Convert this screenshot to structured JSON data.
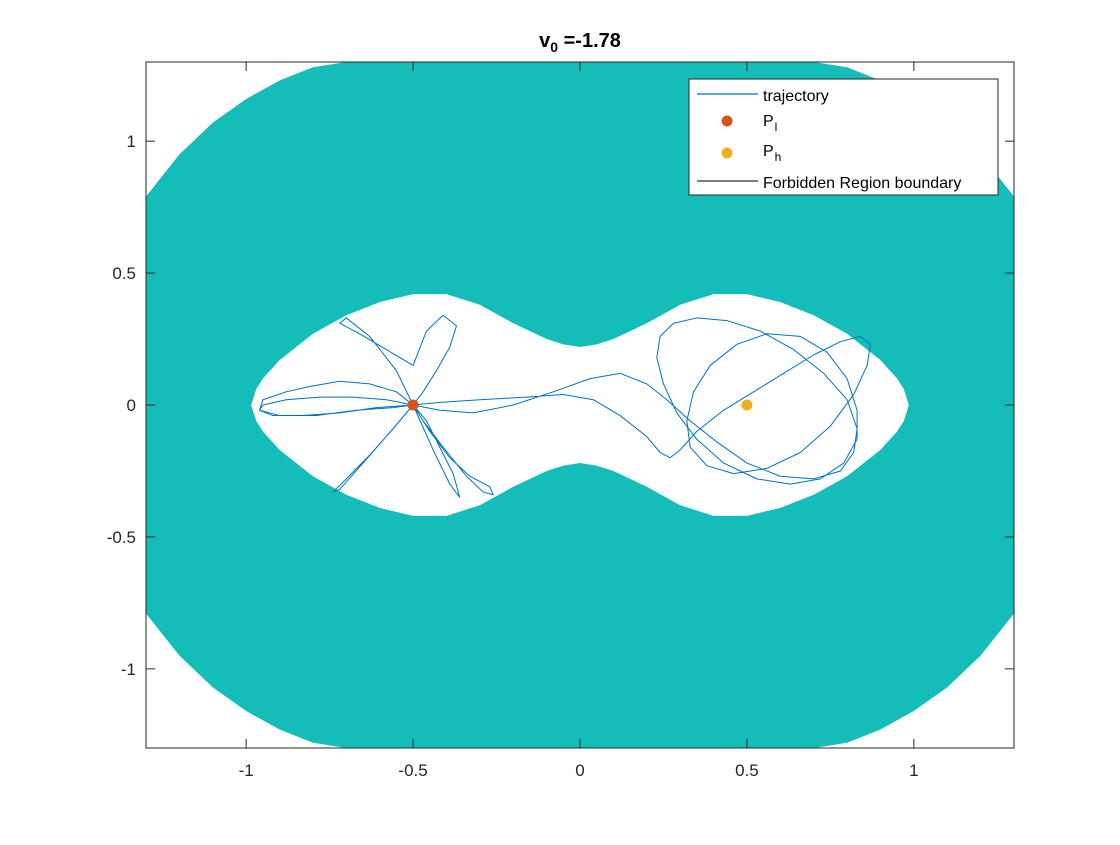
{
  "chart_data": {
    "type": "line",
    "title_main": "v",
    "title_sub": "0",
    "title_rest": " =-1.78",
    "xlim": [
      -1.3,
      1.3
    ],
    "ylim": [
      -1.3,
      1.3
    ],
    "xticks": [
      -1,
      -0.5,
      0,
      0.5,
      1
    ],
    "xtick_labels": [
      "-1",
      "-0.5",
      "0",
      "0.5",
      "1"
    ],
    "yticks": [
      -1,
      -0.5,
      0,
      0.5,
      1
    ],
    "ytick_labels": [
      "-1",
      "-0.5",
      "0",
      "0.5",
      "1"
    ],
    "grid": false,
    "legend_position": "top-right",
    "legend": [
      {
        "key": "trajectory",
        "label": "trajectory",
        "sub": "",
        "marker": "line",
        "color": "#0072BD"
      },
      {
        "key": "p_l",
        "label": "P",
        "sub": "l",
        "marker": "dot",
        "color": "#D95319"
      },
      {
        "key": "p_h",
        "label": "P",
        "sub": "h",
        "marker": "dot",
        "color": "#EDB120"
      },
      {
        "key": "boundary",
        "label": "Forbidden Region boundary",
        "sub": "",
        "marker": "line",
        "color": "#555555"
      }
    ],
    "colors": {
      "forbidden_fill": "#15BDB8",
      "allowed_fill": "#ffffff",
      "trajectory": "#0072BD",
      "p_l": "#D95319",
      "p_h": "#EDB120",
      "boundary": "#555555"
    },
    "points": {
      "p_l": {
        "x": -0.5,
        "y": 0
      },
      "p_h": {
        "x": 0.5,
        "y": 0
      }
    },
    "forbidden_region": {
      "outer_boundary_x": [
        -1.3,
        -1.25,
        -1.2,
        -1.1,
        -1.0,
        -0.9,
        -0.8,
        -0.7,
        -0.6,
        -0.5,
        -0.4,
        -0.3,
        -0.2,
        -0.1,
        0.0,
        0.1,
        0.2,
        0.3,
        0.4,
        0.5,
        0.6,
        0.7,
        0.8,
        0.9,
        1.0,
        1.1,
        1.2,
        1.25,
        1.3
      ],
      "outer_boundary_y": [
        0.79,
        0.87,
        0.95,
        1.07,
        1.16,
        1.23,
        1.28,
        1.3,
        1.3,
        1.3,
        1.3,
        1.3,
        1.3,
        1.3,
        1.3,
        1.3,
        1.3,
        1.3,
        1.3,
        1.3,
        1.3,
        1.3,
        1.28,
        1.23,
        1.16,
        1.07,
        0.95,
        0.87,
        0.79
      ],
      "inner_boundary_x": [
        -0.985,
        -0.97,
        -0.95,
        -0.9,
        -0.85,
        -0.8,
        -0.7,
        -0.6,
        -0.5,
        -0.4,
        -0.3,
        -0.2,
        -0.1,
        -0.05,
        0.0,
        0.05,
        0.1,
        0.2,
        0.3,
        0.4,
        0.5,
        0.6,
        0.7,
        0.8,
        0.85,
        0.9,
        0.95,
        0.97,
        0.985
      ],
      "inner_boundary_y": [
        0.0,
        0.06,
        0.1,
        0.17,
        0.22,
        0.27,
        0.34,
        0.39,
        0.42,
        0.42,
        0.38,
        0.31,
        0.25,
        0.23,
        0.22,
        0.23,
        0.25,
        0.31,
        0.38,
        0.42,
        0.42,
        0.39,
        0.34,
        0.27,
        0.22,
        0.17,
        0.1,
        0.06,
        0.0
      ]
    },
    "trajectory": {
      "x": [
        -0.5,
        -0.47,
        -0.43,
        -0.39,
        -0.37,
        -0.41,
        -0.46,
        -0.5,
        -0.58,
        -0.66,
        -0.72,
        -0.7,
        -0.63,
        -0.55,
        -0.5,
        -0.45,
        -0.39,
        -0.33,
        -0.27,
        -0.26,
        -0.29,
        -0.34,
        -0.41,
        -0.47,
        -0.5,
        -0.55,
        -0.63,
        -0.72,
        -0.81,
        -0.88,
        -0.95,
        -0.96,
        -0.92,
        -0.83,
        -0.72,
        -0.61,
        -0.5,
        -0.42,
        -0.3,
        -0.16,
        -0.05,
        0.04,
        0.12,
        0.2,
        0.24,
        0.27,
        0.3,
        0.35,
        0.43,
        0.52,
        0.61,
        0.7,
        0.78,
        0.84,
        0.87,
        0.86,
        0.82,
        0.75,
        0.66,
        0.56,
        0.46,
        0.38,
        0.33,
        0.32,
        0.34,
        0.39,
        0.47,
        0.56,
        0.66,
        0.74,
        0.8,
        0.83,
        0.83,
        0.79,
        0.72,
        0.63,
        0.53,
        0.43,
        0.35,
        0.29,
        0.25,
        0.23,
        0.24,
        0.28,
        0.35,
        0.44,
        0.54,
        0.64,
        0.73,
        0.8,
        0.83,
        0.82,
        0.78,
        0.7,
        0.6,
        0.5,
        0.41,
        0.33,
        0.26,
        0.2,
        0.12,
        0.03,
        -0.08,
        -0.2,
        -0.32,
        -0.42,
        -0.5,
        -0.58,
        -0.68,
        -0.78,
        -0.88,
        -0.95,
        -0.96,
        -0.9,
        -0.79,
        -0.67,
        -0.56,
        -0.5,
        -0.46,
        -0.42,
        -0.38,
        -0.36,
        -0.39,
        -0.44,
        -0.5,
        -0.56,
        -0.63,
        -0.7,
        -0.74,
        -0.72,
        -0.65,
        -0.56,
        -0.5
      ],
      "y": [
        0.0,
        0.05,
        0.13,
        0.22,
        0.3,
        0.34,
        0.28,
        0.15,
        0.21,
        0.27,
        0.31,
        0.33,
        0.26,
        0.13,
        0.0,
        -0.1,
        -0.2,
        -0.27,
        -0.31,
        -0.34,
        -0.33,
        -0.27,
        -0.16,
        -0.06,
        0.0,
        0.05,
        0.08,
        0.09,
        0.07,
        0.05,
        0.02,
        -0.02,
        -0.04,
        -0.04,
        -0.03,
        -0.01,
        0.0,
        0.01,
        0.02,
        0.03,
        0.04,
        0.02,
        -0.04,
        -0.12,
        -0.18,
        -0.2,
        -0.17,
        -0.1,
        -0.02,
        0.05,
        0.12,
        0.19,
        0.24,
        0.26,
        0.23,
        0.15,
        0.04,
        -0.08,
        -0.18,
        -0.24,
        -0.26,
        -0.23,
        -0.16,
        -0.06,
        0.05,
        0.15,
        0.23,
        0.27,
        0.26,
        0.2,
        0.1,
        -0.02,
        -0.13,
        -0.22,
        -0.28,
        -0.3,
        -0.28,
        -0.22,
        -0.13,
        -0.03,
        0.08,
        0.18,
        0.26,
        0.31,
        0.33,
        0.32,
        0.28,
        0.21,
        0.12,
        0.02,
        -0.09,
        -0.18,
        -0.25,
        -0.28,
        -0.27,
        -0.22,
        -0.14,
        -0.06,
        0.02,
        0.08,
        0.12,
        0.1,
        0.05,
        0.0,
        -0.03,
        -0.02,
        0.0,
        0.02,
        0.03,
        0.03,
        0.02,
        0.0,
        -0.02,
        -0.04,
        -0.04,
        -0.02,
        -0.01,
        0.0,
        -0.06,
        -0.16,
        -0.26,
        -0.35,
        -0.3,
        -0.17,
        0.0,
        -0.09,
        -0.19,
        -0.28,
        -0.33,
        -0.32,
        -0.22,
        -0.09,
        0.0
      ]
    }
  }
}
